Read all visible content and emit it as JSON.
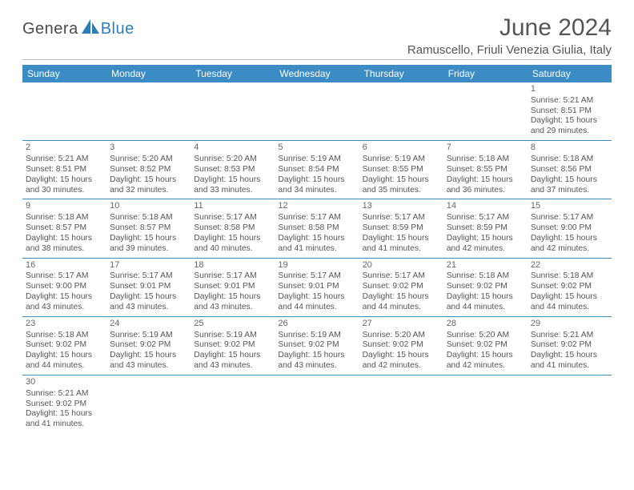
{
  "brand": {
    "text1": "Genera",
    "text2": "Blue",
    "text1_color": "#4a4a4a",
    "text2_color": "#2a7fba",
    "sail_color": "#2a7fba"
  },
  "header": {
    "title": "June 2024",
    "location": "Ramuscello, Friuli Venezia Giulia, Italy"
  },
  "calendar": {
    "weekday_bg": "#3b8bc5",
    "weekday_fg": "#ffffff",
    "weekdays": [
      "Sunday",
      "Monday",
      "Tuesday",
      "Wednesday",
      "Thursday",
      "Friday",
      "Saturday"
    ],
    "weeks": [
      [
        null,
        null,
        null,
        null,
        null,
        null,
        {
          "day": "1",
          "sunrise": "Sunrise: 5:21 AM",
          "sunset": "Sunset: 8:51 PM",
          "d1": "Daylight: 15 hours",
          "d2": "and 29 minutes."
        }
      ],
      [
        {
          "day": "2",
          "sunrise": "Sunrise: 5:21 AM",
          "sunset": "Sunset: 8:51 PM",
          "d1": "Daylight: 15 hours",
          "d2": "and 30 minutes."
        },
        {
          "day": "3",
          "sunrise": "Sunrise: 5:20 AM",
          "sunset": "Sunset: 8:52 PM",
          "d1": "Daylight: 15 hours",
          "d2": "and 32 minutes."
        },
        {
          "day": "4",
          "sunrise": "Sunrise: 5:20 AM",
          "sunset": "Sunset: 8:53 PM",
          "d1": "Daylight: 15 hours",
          "d2": "and 33 minutes."
        },
        {
          "day": "5",
          "sunrise": "Sunrise: 5:19 AM",
          "sunset": "Sunset: 8:54 PM",
          "d1": "Daylight: 15 hours",
          "d2": "and 34 minutes."
        },
        {
          "day": "6",
          "sunrise": "Sunrise: 5:19 AM",
          "sunset": "Sunset: 8:55 PM",
          "d1": "Daylight: 15 hours",
          "d2": "and 35 minutes."
        },
        {
          "day": "7",
          "sunrise": "Sunrise: 5:18 AM",
          "sunset": "Sunset: 8:55 PM",
          "d1": "Daylight: 15 hours",
          "d2": "and 36 minutes."
        },
        {
          "day": "8",
          "sunrise": "Sunrise: 5:18 AM",
          "sunset": "Sunset: 8:56 PM",
          "d1": "Daylight: 15 hours",
          "d2": "and 37 minutes."
        }
      ],
      [
        {
          "day": "9",
          "sunrise": "Sunrise: 5:18 AM",
          "sunset": "Sunset: 8:57 PM",
          "d1": "Daylight: 15 hours",
          "d2": "and 38 minutes."
        },
        {
          "day": "10",
          "sunrise": "Sunrise: 5:18 AM",
          "sunset": "Sunset: 8:57 PM",
          "d1": "Daylight: 15 hours",
          "d2": "and 39 minutes."
        },
        {
          "day": "11",
          "sunrise": "Sunrise: 5:17 AM",
          "sunset": "Sunset: 8:58 PM",
          "d1": "Daylight: 15 hours",
          "d2": "and 40 minutes."
        },
        {
          "day": "12",
          "sunrise": "Sunrise: 5:17 AM",
          "sunset": "Sunset: 8:58 PM",
          "d1": "Daylight: 15 hours",
          "d2": "and 41 minutes."
        },
        {
          "day": "13",
          "sunrise": "Sunrise: 5:17 AM",
          "sunset": "Sunset: 8:59 PM",
          "d1": "Daylight: 15 hours",
          "d2": "and 41 minutes."
        },
        {
          "day": "14",
          "sunrise": "Sunrise: 5:17 AM",
          "sunset": "Sunset: 8:59 PM",
          "d1": "Daylight: 15 hours",
          "d2": "and 42 minutes."
        },
        {
          "day": "15",
          "sunrise": "Sunrise: 5:17 AM",
          "sunset": "Sunset: 9:00 PM",
          "d1": "Daylight: 15 hours",
          "d2": "and 42 minutes."
        }
      ],
      [
        {
          "day": "16",
          "sunrise": "Sunrise: 5:17 AM",
          "sunset": "Sunset: 9:00 PM",
          "d1": "Daylight: 15 hours",
          "d2": "and 43 minutes."
        },
        {
          "day": "17",
          "sunrise": "Sunrise: 5:17 AM",
          "sunset": "Sunset: 9:01 PM",
          "d1": "Daylight: 15 hours",
          "d2": "and 43 minutes."
        },
        {
          "day": "18",
          "sunrise": "Sunrise: 5:17 AM",
          "sunset": "Sunset: 9:01 PM",
          "d1": "Daylight: 15 hours",
          "d2": "and 43 minutes."
        },
        {
          "day": "19",
          "sunrise": "Sunrise: 5:17 AM",
          "sunset": "Sunset: 9:01 PM",
          "d1": "Daylight: 15 hours",
          "d2": "and 44 minutes."
        },
        {
          "day": "20",
          "sunrise": "Sunrise: 5:17 AM",
          "sunset": "Sunset: 9:02 PM",
          "d1": "Daylight: 15 hours",
          "d2": "and 44 minutes."
        },
        {
          "day": "21",
          "sunrise": "Sunrise: 5:18 AM",
          "sunset": "Sunset: 9:02 PM",
          "d1": "Daylight: 15 hours",
          "d2": "and 44 minutes."
        },
        {
          "day": "22",
          "sunrise": "Sunrise: 5:18 AM",
          "sunset": "Sunset: 9:02 PM",
          "d1": "Daylight: 15 hours",
          "d2": "and 44 minutes."
        }
      ],
      [
        {
          "day": "23",
          "sunrise": "Sunrise: 5:18 AM",
          "sunset": "Sunset: 9:02 PM",
          "d1": "Daylight: 15 hours",
          "d2": "and 44 minutes."
        },
        {
          "day": "24",
          "sunrise": "Sunrise: 5:19 AM",
          "sunset": "Sunset: 9:02 PM",
          "d1": "Daylight: 15 hours",
          "d2": "and 43 minutes."
        },
        {
          "day": "25",
          "sunrise": "Sunrise: 5:19 AM",
          "sunset": "Sunset: 9:02 PM",
          "d1": "Daylight: 15 hours",
          "d2": "and 43 minutes."
        },
        {
          "day": "26",
          "sunrise": "Sunrise: 5:19 AM",
          "sunset": "Sunset: 9:02 PM",
          "d1": "Daylight: 15 hours",
          "d2": "and 43 minutes."
        },
        {
          "day": "27",
          "sunrise": "Sunrise: 5:20 AM",
          "sunset": "Sunset: 9:02 PM",
          "d1": "Daylight: 15 hours",
          "d2": "and 42 minutes."
        },
        {
          "day": "28",
          "sunrise": "Sunrise: 5:20 AM",
          "sunset": "Sunset: 9:02 PM",
          "d1": "Daylight: 15 hours",
          "d2": "and 42 minutes."
        },
        {
          "day": "29",
          "sunrise": "Sunrise: 5:21 AM",
          "sunset": "Sunset: 9:02 PM",
          "d1": "Daylight: 15 hours",
          "d2": "and 41 minutes."
        }
      ],
      [
        {
          "day": "30",
          "sunrise": "Sunrise: 5:21 AM",
          "sunset": "Sunset: 9:02 PM",
          "d1": "Daylight: 15 hours",
          "d2": "and 41 minutes."
        },
        null,
        null,
        null,
        null,
        null,
        null
      ]
    ]
  }
}
